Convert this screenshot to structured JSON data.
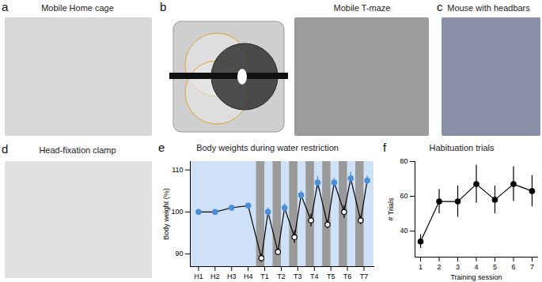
{
  "panels": [
    {
      "label": "a",
      "title": "Mobile Home cage"
    },
    {
      "label": "b",
      "title": "Mobile T-maze"
    },
    {
      "label": "c",
      "title": "Mouse with headbars"
    },
    {
      "label": "d",
      "title": "Head-fixation clamp"
    }
  ],
  "chart_data": [
    {
      "panel_label": "e",
      "type": "line",
      "title": "Body weights during water restriction",
      "y_label": "Body weight (%)",
      "line_style": "solid",
      "xlim": [
        0.5,
        11.6
      ],
      "xticks": [
        {
          "value": 1,
          "label": "H1"
        },
        {
          "value": 2,
          "label": "H2"
        },
        {
          "value": 3,
          "label": "H3"
        },
        {
          "value": 4,
          "label": "H4"
        },
        {
          "value": 5,
          "label": "T1"
        },
        {
          "value": 6,
          "label": "T2"
        },
        {
          "value": 7,
          "label": "T3"
        },
        {
          "value": 8,
          "label": "T4"
        },
        {
          "value": 9,
          "label": "T5"
        },
        {
          "value": 10,
          "label": "T6"
        },
        {
          "value": 11,
          "label": "T7"
        }
      ],
      "ylim": [
        87,
        112
      ],
      "yticks": [
        90,
        100,
        110
      ],
      "restriction_periods": [
        [
          4.5,
          5
        ],
        [
          5.5,
          6
        ],
        [
          6.5,
          7
        ],
        [
          7.5,
          8
        ],
        [
          8.5,
          9
        ],
        [
          9.5,
          10
        ],
        [
          10.5,
          11
        ]
      ],
      "series": [
        {
          "marker": "circle",
          "color": "#4a8fd8",
          "x": [
            1,
            2,
            3,
            4,
            5.2,
            6.2,
            7.2,
            8.2,
            9.2,
            10.2,
            11.2
          ],
          "values": [
            100,
            100,
            101,
            101.5,
            100,
            101,
            104,
            107,
            107,
            108,
            107.5
          ],
          "errors": [
            0,
            0,
            0.3,
            0.5,
            1,
            1,
            1,
            1.5,
            1,
            1.5,
            1
          ]
        },
        {
          "marker": "open_circle",
          "color": "#000000",
          "x": [
            4.8,
            5.8,
            6.8,
            7.8,
            8.8,
            9.8,
            10.8
          ],
          "values": [
            89,
            90.5,
            94,
            98,
            97,
            100,
            98
          ],
          "errors": [
            1,
            0.7,
            1.5,
            1.5,
            1,
            1.5,
            1
          ]
        }
      ]
    },
    {
      "panel_label": "f",
      "type": "line",
      "title": "Habituation trials",
      "x_label": "Training session",
      "y_label": "# Trials",
      "color": "#000000",
      "marker": "circle",
      "x": [
        1,
        2,
        3,
        4,
        5,
        6,
        7
      ],
      "values": [
        34,
        57,
        57,
        67,
        58,
        67,
        63
      ],
      "errors": [
        4,
        7,
        9,
        11,
        8,
        10,
        9
      ],
      "xlim": [
        0.7,
        7.3
      ],
      "xticks": [
        1,
        2,
        3,
        4,
        5,
        6,
        7
      ],
      "ylim": [
        25,
        80
      ],
      "yticks": [
        40,
        60,
        80
      ]
    }
  ]
}
